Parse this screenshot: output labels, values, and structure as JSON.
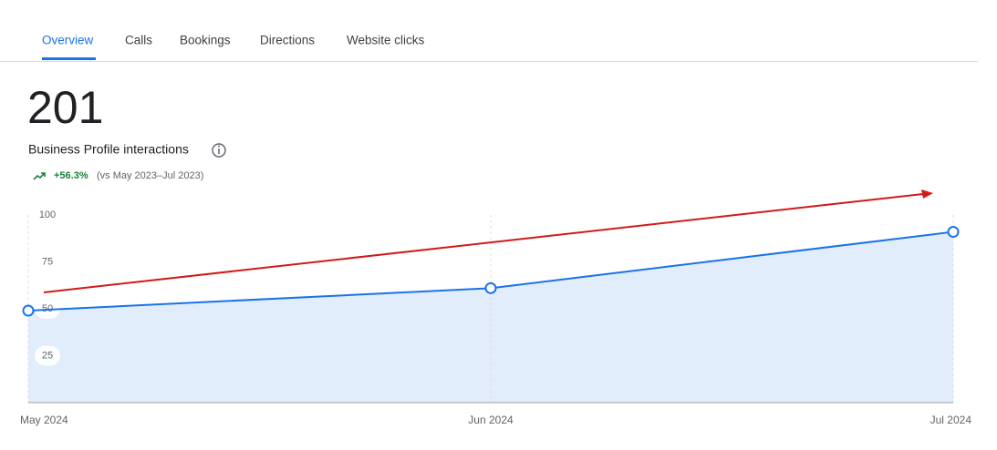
{
  "tabs": [
    "Overview",
    "Calls",
    "Bookings",
    "Directions",
    "Website clicks"
  ],
  "summary": {
    "value": 201,
    "label": "Business Profile interactions",
    "change": "+56.3%",
    "comparison": "(vs May 2023–Jul 2023)"
  },
  "chart_data": {
    "type": "line",
    "x": [
      "May 2024",
      "Jun 2024",
      "Jul 2024"
    ],
    "series": [
      {
        "color": "#1a73e8",
        "fill": "#e2edfb",
        "values": [
          49,
          61,
          91
        ]
      }
    ],
    "ylim": [
      0,
      100
    ],
    "yticks": [
      25,
      50,
      75,
      100
    ],
    "grid": true
  }
}
